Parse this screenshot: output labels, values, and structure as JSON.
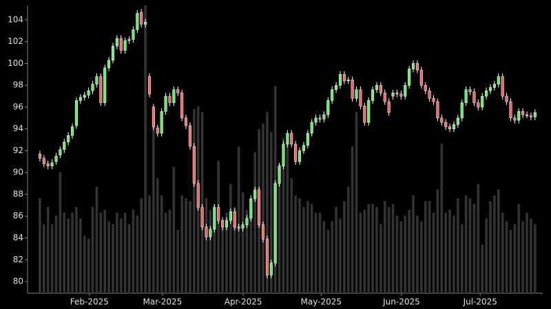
{
  "chart_data": {
    "type": "candlestick",
    "open": [
      91.7,
      91.3,
      90.8,
      90.6,
      91.0,
      91.6,
      92.1,
      92.8,
      93.4,
      94.3,
      96.6,
      96.9,
      97.1,
      97.5,
      98.1,
      98.8,
      96.4,
      99.6,
      100.3,
      101.6,
      102.3,
      101.2,
      102.1,
      102.2,
      103.1,
      104.7,
      103.6,
      98.8,
      96.0,
      94.1,
      93.6,
      95.6,
      97.0,
      96.4,
      97.6,
      97.3,
      95.0,
      94.3,
      92.4,
      89.0,
      86.8,
      85.0,
      84.1,
      84.8,
      86.8,
      85.6,
      85.0,
      85.6,
      86.4,
      85.0,
      84.9,
      85.2,
      85.8,
      87.6,
      88.4,
      85.2,
      83.9,
      80.6,
      81.7,
      89.0,
      90.6,
      92.6,
      93.6,
      92.6,
      91.0,
      92.0,
      92.5,
      93.6,
      94.6,
      95.0,
      94.9,
      95.3,
      96.6,
      97.6,
      98.0,
      99.0,
      98.4,
      98.5,
      96.8,
      97.6,
      96.1,
      94.6,
      96.6,
      97.6,
      98.0,
      97.3,
      96.5,
      97.0,
      97.3,
      97.2,
      97.0,
      98.0,
      99.5,
      100.0,
      99.4,
      98.0,
      97.5,
      96.8,
      96.5,
      95.0,
      94.6,
      94.2,
      94.0,
      94.4,
      95.0,
      96.4,
      97.6,
      97.4,
      96.4,
      96.0,
      97.0,
      97.5,
      97.8,
      98.1,
      98.8,
      97.0,
      96.5,
      95.0,
      94.8,
      95.6,
      95.3,
      95.2,
      95.1
    ],
    "high": [
      92.0,
      91.6,
      91.1,
      91.2,
      91.8,
      92.4,
      93.1,
      93.7,
      94.5,
      96.9,
      97.2,
      97.4,
      97.8,
      98.4,
      99.1,
      99.1,
      99.9,
      100.6,
      101.9,
      102.6,
      102.6,
      102.4,
      102.5,
      103.4,
      104.9,
      105.0,
      104.1,
      99.1,
      96.3,
      94.4,
      95.9,
      97.3,
      97.3,
      97.9,
      97.9,
      97.6,
      95.3,
      94.6,
      92.7,
      89.3,
      87.1,
      85.3,
      85.1,
      87.1,
      87.1,
      85.9,
      85.9,
      86.7,
      86.7,
      85.3,
      85.5,
      86.1,
      87.9,
      88.7,
      88.7,
      85.5,
      84.2,
      82.0,
      89.3,
      90.9,
      92.9,
      93.9,
      93.9,
      92.9,
      92.3,
      92.8,
      93.9,
      94.9,
      95.3,
      95.3,
      95.6,
      96.9,
      97.9,
      98.3,
      99.3,
      99.3,
      98.8,
      98.8,
      97.9,
      97.9,
      96.4,
      96.9,
      97.9,
      98.3,
      98.3,
      97.6,
      96.8,
      97.6,
      97.6,
      97.5,
      98.3,
      99.8,
      100.3,
      100.3,
      99.7,
      98.3,
      97.8,
      97.1,
      96.8,
      95.3,
      94.9,
      94.5,
      94.7,
      95.3,
      96.7,
      97.9,
      97.9,
      97.7,
      96.7,
      97.3,
      97.8,
      98.1,
      98.4,
      99.1,
      99.1,
      97.3,
      96.8,
      95.3,
      95.9,
      95.9,
      95.6,
      95.5,
      95.8
    ],
    "low": [
      91.0,
      90.5,
      90.3,
      90.3,
      90.7,
      91.3,
      91.8,
      92.5,
      93.1,
      94.0,
      96.3,
      96.6,
      96.8,
      97.2,
      97.8,
      96.1,
      96.1,
      99.3,
      100.0,
      101.3,
      100.9,
      100.9,
      101.8,
      101.9,
      102.8,
      103.3,
      103.3,
      96.9,
      93.9,
      93.3,
      93.3,
      95.3,
      96.1,
      96.1,
      97.0,
      94.7,
      94.0,
      92.1,
      88.7,
      86.5,
      84.7,
      83.8,
      83.8,
      84.5,
      85.3,
      84.7,
      84.7,
      85.3,
      84.7,
      84.6,
      84.6,
      84.9,
      85.5,
      87.3,
      84.9,
      83.6,
      80.3,
      80.3,
      81.4,
      88.7,
      90.3,
      92.3,
      92.3,
      90.7,
      90.7,
      91.7,
      92.2,
      93.3,
      94.3,
      94.6,
      94.6,
      95.0,
      96.3,
      97.3,
      97.7,
      98.1,
      98.1,
      96.5,
      96.5,
      95.8,
      94.3,
      94.3,
      96.3,
      97.3,
      97.0,
      96.2,
      95.2,
      96.7,
      96.9,
      96.7,
      96.7,
      97.7,
      99.2,
      99.1,
      97.7,
      97.2,
      96.5,
      96.2,
      94.7,
      94.3,
      93.9,
      93.7,
      93.7,
      94.1,
      94.7,
      96.1,
      97.1,
      96.1,
      95.7,
      95.7,
      96.7,
      97.2,
      97.5,
      97.8,
      96.7,
      96.2,
      94.7,
      94.5,
      94.5,
      95.0,
      95.0,
      94.8,
      94.8
    ],
    "close": [
      91.3,
      90.8,
      90.6,
      90.9,
      91.5,
      92.1,
      92.8,
      93.4,
      94.2,
      96.6,
      96.9,
      97.1,
      97.5,
      98.1,
      98.8,
      96.4,
      99.6,
      100.3,
      101.6,
      102.3,
      101.2,
      102.1,
      102.2,
      103.1,
      104.6,
      103.6,
      103.8,
      97.2,
      94.2,
      93.6,
      95.6,
      97.0,
      96.4,
      97.6,
      97.3,
      95.0,
      94.3,
      92.4,
      89.0,
      86.8,
      85.0,
      84.1,
      84.8,
      86.8,
      85.6,
      85.0,
      85.6,
      86.4,
      85.0,
      84.9,
      85.2,
      85.8,
      87.6,
      88.4,
      85.2,
      83.9,
      80.6,
      81.7,
      89.0,
      90.6,
      92.6,
      93.6,
      92.6,
      91.0,
      92.0,
      92.5,
      93.6,
      94.6,
      95.0,
      94.9,
      95.3,
      96.6,
      97.6,
      98.0,
      99.0,
      98.4,
      98.5,
      96.8,
      97.6,
      96.1,
      94.6,
      96.6,
      97.6,
      98.0,
      97.3,
      96.5,
      95.5,
      97.3,
      97.2,
      97.0,
      98.0,
      99.5,
      100.0,
      99.4,
      98.0,
      97.5,
      96.8,
      96.5,
      95.0,
      94.6,
      94.2,
      94.0,
      94.4,
      95.0,
      96.4,
      97.6,
      97.4,
      96.4,
      96.0,
      97.0,
      97.5,
      97.8,
      98.1,
      98.8,
      97.0,
      96.5,
      95.0,
      94.8,
      95.6,
      95.3,
      95.2,
      95.1,
      95.5
    ],
    "volume": [
      33,
      24,
      30,
      24,
      27,
      42,
      28,
      26,
      28,
      30,
      26,
      20,
      19,
      30,
      37,
      28,
      29,
      25,
      24,
      28,
      26,
      28,
      24,
      29,
      27,
      33,
      100,
      34,
      65,
      40,
      34,
      28,
      29,
      44,
      22,
      34,
      33,
      32,
      64,
      65,
      63,
      33,
      29,
      31,
      46,
      23,
      28,
      38,
      30,
      51,
      35,
      29,
      31,
      49,
      57,
      59,
      63,
      56,
      72,
      45,
      54,
      52,
      40,
      34,
      33,
      30,
      32,
      31,
      28,
      28,
      25,
      22,
      25,
      30,
      26,
      32,
      37,
      51,
      63,
      28,
      29,
      31,
      31,
      30,
      24,
      32,
      30,
      31,
      27,
      25,
      27,
      29,
      34,
      27,
      25,
      32,
      32,
      28,
      36,
      52,
      28,
      29,
      27,
      33,
      24,
      34,
      33,
      31,
      38,
      17,
      26,
      32,
      34,
      36,
      28,
      25,
      22,
      24,
      31,
      25,
      28,
      26,
      24
    ],
    "up_color": "#66ee66",
    "down_color": "#ee6666",
    "volume_color": "#333333",
    "ylim": [
      78.93,
      105.32
    ],
    "yticks": [
      80,
      82,
      84,
      86,
      88,
      90,
      92,
      94,
      96,
      98,
      100,
      102,
      104
    ],
    "vlim": [
      0,
      100
    ],
    "xlim": [
      -2.7,
      123.9
    ],
    "xticks": [
      {
        "value": 12.2,
        "label": "Feb-2025"
      },
      {
        "value": 30.2,
        "label": "Mar-2025"
      },
      {
        "value": 50.1,
        "label": "Apr-2025"
      },
      {
        "value": 69.3,
        "label": "May-2025"
      },
      {
        "value": 89.1,
        "label": "Jun-2025"
      },
      {
        "value": 108.5,
        "label": "Jul-2025"
      }
    ]
  }
}
